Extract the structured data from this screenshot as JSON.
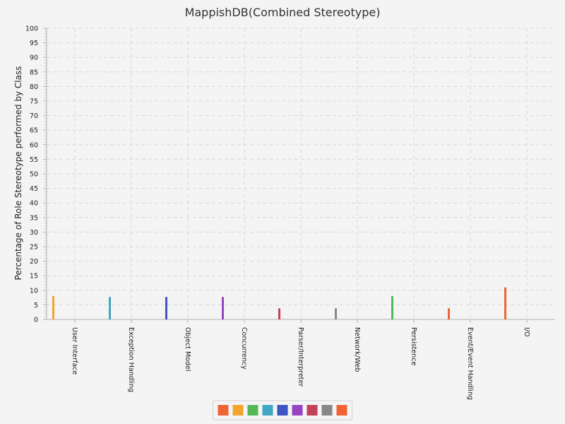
{
  "chart_data": {
    "type": "bar",
    "title": "MappishDB(Combined Stereotype)",
    "xlabel": "",
    "ylabel": "Percentage of Role Stereotype performed by Class",
    "ylim": [
      0,
      100
    ],
    "yticks": [
      0,
      5,
      10,
      15,
      20,
      25,
      30,
      35,
      40,
      45,
      50,
      55,
      60,
      65,
      70,
      75,
      80,
      85,
      90,
      95,
      100
    ],
    "categories": [
      "User Interface",
      "Exception Handling",
      "Object Model",
      "Concurrency",
      "Parser/Interpreter",
      "Network/Web",
      "Persistence",
      "Event/Event Handling",
      "I/O"
    ],
    "values": [
      8,
      7.7,
      7.7,
      7.7,
      3.8,
      3.8,
      8,
      3.8,
      11
    ],
    "bar_colors": [
      "#f3a42c",
      "#3ea7c4",
      "#3e55c5",
      "#9645c5",
      "#c4415a",
      "#878787",
      "#56b756",
      "#f06433",
      "#f06433"
    ],
    "grid": true,
    "legend": {
      "placement": "bottom-center",
      "colors": [
        "#f06433",
        "#f3a42c",
        "#56b756",
        "#3ea7c4",
        "#3e55c5",
        "#9645c5",
        "#c4415a",
        "#878787",
        "#f06433"
      ]
    }
  }
}
